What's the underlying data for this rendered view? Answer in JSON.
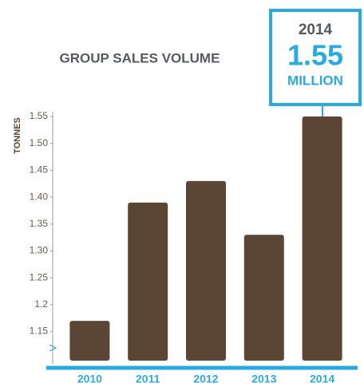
{
  "chart_data": {
    "type": "bar",
    "title": "GROUP SALES VOLUME",
    "y_label": "TONNES",
    "categories": [
      "2010",
      "2011",
      "2012",
      "2013",
      "2014"
    ],
    "values": [
      1.17,
      1.39,
      1.43,
      1.33,
      1.55
    ],
    "color": "#5b4535",
    "ylim": [
      1.09,
      1.55
    ],
    "yticks": [
      1.15,
      1.2,
      {
        "value": 1.25,
        "label": "1.25"
      },
      {
        "value": 1.3,
        "label": "1.30"
      },
      {
        "value": 1.35,
        "label": "1.35"
      },
      {
        "value": 1.4,
        "label": "1.40"
      },
      {
        "value": 1.45,
        "label": "1.45"
      },
      {
        "value": 1.5,
        "label": "1.50"
      },
      1.55
    ],
    "annotation": {
      "year": "2014",
      "value": "1.55",
      "unit": "MILLION"
    }
  }
}
